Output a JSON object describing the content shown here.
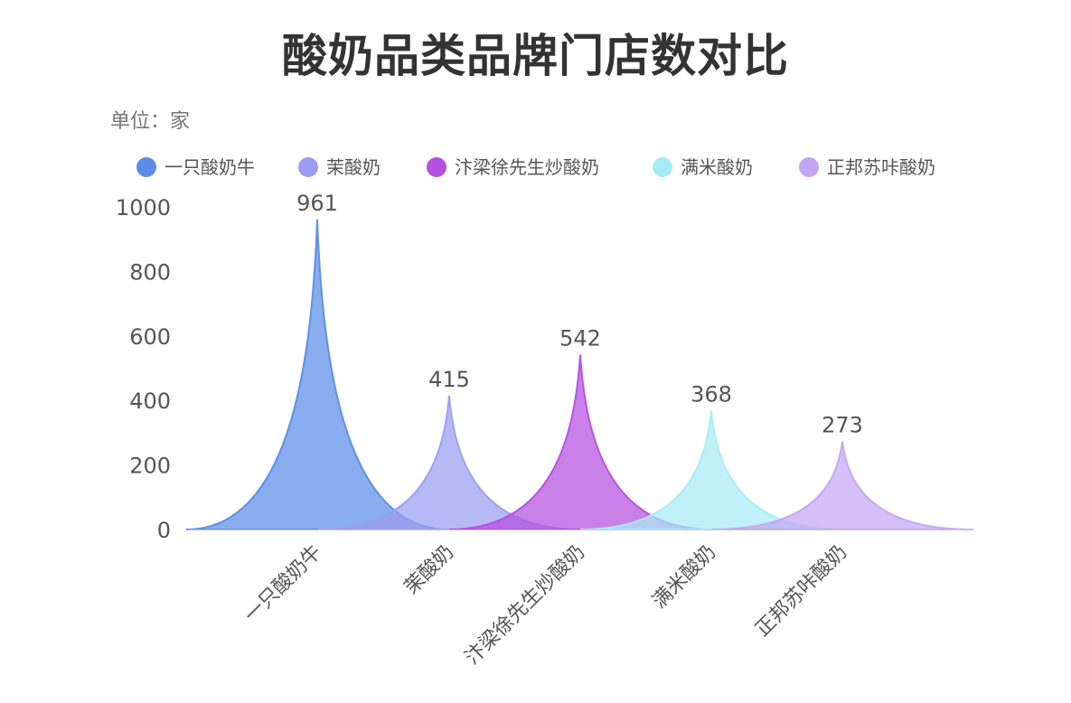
{
  "chart_data": {
    "type": "area",
    "title": "酸奶品类品牌门店数对比",
    "unit_label": "单位：家",
    "categories": [
      "一只酸奶牛",
      "茉酸奶",
      "汴梁徐先生炒酸奶",
      "满米酸奶",
      "正邦苏咔酸奶"
    ],
    "values": [
      961,
      415,
      542,
      368,
      273
    ],
    "series": [
      {
        "name": "一只酸奶牛",
        "value": 961,
        "color": "#5b8de8"
      },
      {
        "name": "茉酸奶",
        "value": 415,
        "color": "#9b9ef0"
      },
      {
        "name": "汴梁徐先生炒酸奶",
        "value": 542,
        "color": "#b44fe0"
      },
      {
        "name": "满米酸奶",
        "value": 368,
        "color": "#a7ecf5"
      },
      {
        "name": "正邦苏咔酸奶",
        "value": 273,
        "color": "#c3a6f2"
      }
    ],
    "ylim": [
      0,
      1000
    ],
    "yticks": [
      0,
      200,
      400,
      600,
      800,
      1000
    ],
    "grid": false,
    "legend_position": "top-left"
  }
}
